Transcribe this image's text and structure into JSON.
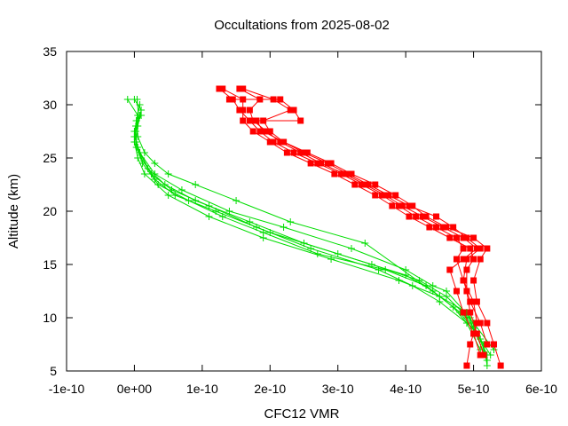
{
  "chart_data": {
    "type": "scatter",
    "title": "Occultations from 2025-08-02",
    "xlabel": "CFC12 VMR",
    "ylabel": "Altitude (km)",
    "xlim": [
      -1e-10,
      6e-10
    ],
    "ylim": [
      5,
      35
    ],
    "x_ticks": [
      {
        "value": -1e-10,
        "label": "-1e-10"
      },
      {
        "value": 0,
        "label": "0e+00"
      },
      {
        "value": 1e-10,
        "label": "1e-10"
      },
      {
        "value": 2e-10,
        "label": "2e-10"
      },
      {
        "value": 3e-10,
        "label": "3e-10"
      },
      {
        "value": 4e-10,
        "label": "4e-10"
      },
      {
        "value": 5e-10,
        "label": "5e-10"
      },
      {
        "value": 6e-10,
        "label": "6e-10"
      }
    ],
    "y_ticks": [
      {
        "value": 5,
        "label": "5"
      },
      {
        "value": 10,
        "label": "10"
      },
      {
        "value": 15,
        "label": "15"
      },
      {
        "value": 20,
        "label": "20"
      },
      {
        "value": 25,
        "label": "25"
      },
      {
        "value": 30,
        "label": "30"
      },
      {
        "value": 35,
        "label": "35"
      }
    ],
    "grid": false,
    "legend": "none",
    "colors": {
      "red_series": "#ff0000",
      "green_series": "#00dd00",
      "axis": "#000000"
    },
    "red_profiles": [
      [
        [
          5.4e-10,
          5.5
        ],
        [
          5.3e-10,
          7.5
        ],
        [
          5.2e-10,
          9.5
        ],
        [
          5.05e-10,
          11.5
        ],
        [
          5e-10,
          13.5
        ],
        [
          5.1e-10,
          15.5
        ],
        [
          5.2e-10,
          16.5
        ],
        [
          5e-10,
          17.5
        ],
        [
          4.6e-10,
          18.5
        ],
        [
          4.3e-10,
          19.5
        ],
        [
          4.1e-10,
          20.5
        ],
        [
          3.85e-10,
          21.5
        ],
        [
          3.55e-10,
          22.5
        ],
        [
          3.2e-10,
          23.5
        ],
        [
          2.9e-10,
          24.5
        ],
        [
          2.55e-10,
          25.5
        ],
        [
          2.2e-10,
          26.5
        ],
        [
          2e-10,
          27.5
        ],
        [
          1.9e-10,
          28.5
        ],
        [
          2.3e-10,
          29.5
        ],
        [
          2.05e-10,
          30.5
        ],
        [
          1.6e-10,
          31.5
        ]
      ],
      [
        [
          4.9e-10,
          5.5
        ],
        [
          4.95e-10,
          7.5
        ],
        [
          5.05e-10,
          9.5
        ],
        [
          5e-10,
          11.5
        ],
        [
          4.85e-10,
          13.5
        ],
        [
          4.75e-10,
          15.5
        ],
        [
          4.85e-10,
          16.5
        ],
        [
          4.75e-10,
          17.5
        ],
        [
          4.45e-10,
          18.5
        ],
        [
          4.15e-10,
          19.5
        ],
        [
          3.9e-10,
          20.5
        ],
        [
          3.65e-10,
          21.5
        ],
        [
          3.35e-10,
          22.5
        ],
        [
          3.05e-10,
          23.5
        ],
        [
          2.7e-10,
          24.5
        ],
        [
          2.35e-10,
          25.5
        ],
        [
          2.05e-10,
          26.5
        ],
        [
          1.85e-10,
          27.5
        ],
        [
          1.7e-10,
          28.5
        ],
        [
          1.55e-10,
          29.5
        ],
        [
          1.45e-10,
          30.5
        ],
        [
          1.25e-10,
          31.5
        ]
      ],
      [
        [
          5.1e-10,
          6.5
        ],
        [
          5e-10,
          8.5
        ],
        [
          4.85e-10,
          10.5
        ],
        [
          4.75e-10,
          12.5
        ],
        [
          4.65e-10,
          14.5
        ],
        [
          4.85e-10,
          15.5
        ],
        [
          5.05e-10,
          16.5
        ],
        [
          4.85e-10,
          17.5
        ],
        [
          4.55e-10,
          18.5
        ],
        [
          4.25e-10,
          19.5
        ],
        [
          3.95e-10,
          20.5
        ],
        [
          3.7e-10,
          21.5
        ],
        [
          3.4e-10,
          22.5
        ],
        [
          3.1e-10,
          23.5
        ],
        [
          2.75e-10,
          24.5
        ],
        [
          2.45e-10,
          25.5
        ],
        [
          2.15e-10,
          26.5
        ],
        [
          1.95e-10,
          27.5
        ],
        [
          1.75e-10,
          28.5
        ],
        [
          1.7e-10,
          29.5
        ],
        [
          1.85e-10,
          30.5
        ],
        [
          1.55e-10,
          31.5
        ]
      ],
      [
        [
          5.15e-10,
          6.5
        ],
        [
          5.05e-10,
          8.5
        ],
        [
          4.95e-10,
          10.5
        ],
        [
          4.9e-10,
          12.5
        ],
        [
          4.9e-10,
          14.5
        ],
        [
          5e-10,
          15.5
        ],
        [
          4.95e-10,
          16.5
        ],
        [
          4.65e-10,
          17.5
        ],
        [
          4.35e-10,
          18.5
        ],
        [
          4.05e-10,
          19.5
        ],
        [
          3.8e-10,
          20.5
        ],
        [
          3.55e-10,
          21.5
        ],
        [
          3.25e-10,
          22.5
        ],
        [
          2.95e-10,
          23.5
        ],
        [
          2.6e-10,
          24.5
        ],
        [
          2.25e-10,
          25.5
        ],
        [
          2e-10,
          26.5
        ],
        [
          1.75e-10,
          27.5
        ],
        [
          1.6e-10,
          28.5
        ],
        [
          1.6e-10,
          29.5
        ],
        [
          1.6e-10,
          30.5
        ],
        [
          1.3e-10,
          31.5
        ]
      ],
      [
        [
          5.2e-10,
          7.5
        ],
        [
          5.1e-10,
          9.5
        ],
        [
          4.95e-10,
          11.5
        ],
        [
          4.85e-10,
          13.5
        ],
        [
          4.9e-10,
          15.5
        ],
        [
          5.1e-10,
          16.5
        ],
        [
          4.9e-10,
          17.5
        ],
        [
          4.7e-10,
          18.5
        ],
        [
          4.45e-10,
          19.5
        ],
        [
          4.05e-10,
          20.5
        ],
        [
          3.75e-10,
          21.5
        ],
        [
          3.45e-10,
          22.5
        ],
        [
          3.15e-10,
          23.5
        ],
        [
          2.85e-10,
          24.5
        ],
        [
          2.5e-10,
          25.5
        ],
        [
          2.2e-10,
          26.5
        ],
        [
          1.9e-10,
          27.5
        ],
        [
          1.8e-10,
          28.5
        ],
        [
          2.45e-10,
          28.5
        ],
        [
          2.35e-10,
          29.5
        ],
        [
          2.15e-10,
          30.5
        ],
        [
          1.4e-10,
          30.5
        ]
      ]
    ],
    "green_profiles": [
      [
        [
          5.2e-10,
          6.0
        ],
        [
          5.1e-10,
          8.0
        ],
        [
          4.8e-10,
          10.5
        ],
        [
          4.4e-10,
          12.5
        ],
        [
          4e-10,
          14.0
        ],
        [
          3e-10,
          16.0
        ],
        [
          2e-10,
          18.0
        ],
        [
          1.2e-10,
          20.0
        ],
        [
          6e-11,
          21.5
        ],
        [
          3e-11,
          23.0
        ],
        [
          1e-11,
          25.0
        ],
        [
          2e-12,
          26.5
        ],
        [
          5e-12,
          28.0
        ],
        [
          1e-11,
          29.5
        ],
        [
          0.0,
          30.5
        ]
      ],
      [
        [
          5.25e-10,
          6.5
        ],
        [
          5e-10,
          9.0
        ],
        [
          4.5e-10,
          11.5
        ],
        [
          4.1e-10,
          13.0
        ],
        [
          3.6e-10,
          14.5
        ],
        [
          2.6e-10,
          16.5
        ],
        [
          1.8e-10,
          18.5
        ],
        [
          1.1e-10,
          20.5
        ],
        [
          5.5e-11,
          22.0
        ],
        [
          2.5e-11,
          23.5
        ],
        [
          8e-12,
          25.5
        ],
        [
          0.0,
          27.0
        ],
        [
          3e-12,
          28.5
        ],
        [
          8e-12,
          30.0
        ]
      ],
      [
        [
          5.3e-10,
          7.0
        ],
        [
          5e-10,
          9.5
        ],
        [
          4.6e-10,
          12.0
        ],
        [
          4.2e-10,
          13.5
        ],
        [
          3.5e-10,
          15.0
        ],
        [
          2.5e-10,
          17.0
        ],
        [
          1.7e-10,
          19.0
        ],
        [
          9e-11,
          21.0
        ],
        [
          4.5e-11,
          22.5
        ],
        [
          2e-11,
          24.0
        ],
        [
          5e-12,
          26.0
        ],
        [
          0.0,
          27.5
        ],
        [
          5e-12,
          29.0
        ],
        [
          -1e-11,
          30.5
        ]
      ],
      [
        [
          5.2e-10,
          5.5
        ],
        [
          5.15e-10,
          7.5
        ],
        [
          4.9e-10,
          10.0
        ],
        [
          4.5e-10,
          12.0
        ],
        [
          3.9e-10,
          13.5
        ],
        [
          2.9e-10,
          15.5
        ],
        [
          1.9e-10,
          17.5
        ],
        [
          1.1e-10,
          19.5
        ],
        [
          5e-11,
          21.5
        ],
        [
          1.5e-11,
          23.5
        ],
        [
          5e-12,
          25.0
        ],
        [
          0.0,
          26.5
        ],
        [
          2e-12,
          28.0
        ],
        [
          1e-11,
          29.0
        ]
      ],
      [
        [
          5.1e-10,
          7.0
        ],
        [
          4.9e-10,
          9.5
        ],
        [
          4.7e-10,
          11.0
        ],
        [
          4.3e-10,
          13.0
        ],
        [
          3.7e-10,
          14.5
        ],
        [
          2.7e-10,
          16.0
        ],
        [
          1.9e-10,
          18.0
        ],
        [
          1.3e-10,
          19.5
        ],
        [
          8e-11,
          21.0
        ],
        [
          3.5e-11,
          22.5
        ],
        [
          1.2e-11,
          24.5
        ],
        [
          3e-12,
          26.0
        ],
        [
          2e-12,
          27.5
        ],
        [
          6e-12,
          29.0
        ],
        [
          4e-12,
          30.5
        ]
      ],
      [
        [
          5.2e-10,
          6.5
        ],
        [
          4.95e-10,
          10.0
        ],
        [
          4.6e-10,
          12.5
        ],
        [
          4.4e-10,
          13.0
        ],
        [
          4e-10,
          14.5
        ],
        [
          3.2e-10,
          16.5
        ],
        [
          2.2e-10,
          18.5
        ],
        [
          1.4e-10,
          20.0
        ],
        [
          7e-11,
          22.0
        ],
        [
          3e-11,
          23.5
        ],
        [
          8e-12,
          25.5
        ],
        [
          0.0,
          27.0
        ],
        [
          8e-12,
          29.0
        ]
      ],
      [
        [
          5.2e-10,
          6.0
        ],
        [
          4.9e-10,
          10.5
        ],
        [
          4.5e-10,
          12.0
        ],
        [
          3.4e-10,
          17.0
        ],
        [
          2.3e-10,
          19.0
        ],
        [
          1.5e-10,
          21.0
        ],
        [
          9e-11,
          22.5
        ],
        [
          5e-11,
          23.5
        ],
        [
          3e-11,
          24.5
        ],
        [
          1.5e-11,
          25.5
        ],
        [
          5e-12,
          27.0
        ],
        [
          3e-12,
          28.5
        ]
      ]
    ]
  }
}
